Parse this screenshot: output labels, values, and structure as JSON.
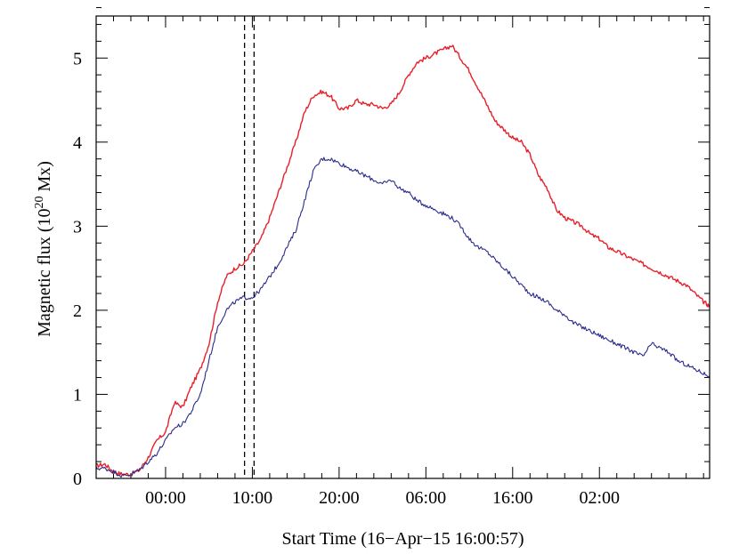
{
  "chart_data": {
    "type": "line",
    "xlabel": "Start Time (16−Apr−15 16:00:57)",
    "ylabel_main": "Magnetic flux (10",
    "ylabel_exp": "20",
    "ylabel_tail": " Mx)",
    "ylim": [
      0,
      5.5
    ],
    "xlim_hours": [
      0,
      70.7
    ],
    "x_ticks": [
      {
        "hour": 8,
        "label": "00:00"
      },
      {
        "hour": 18,
        "label": "10:00"
      },
      {
        "hour": 28,
        "label": "20:00"
      },
      {
        "hour": 38,
        "label": "06:00"
      },
      {
        "hour": 48,
        "label": "16:00"
      },
      {
        "hour": 58,
        "label": "02:00"
      }
    ],
    "y_ticks": [
      {
        "value": 0,
        "label": "0"
      },
      {
        "value": 1,
        "label": "1"
      },
      {
        "value": 2,
        "label": "2"
      },
      {
        "value": 3,
        "label": "3"
      },
      {
        "value": 4,
        "label": "4"
      },
      {
        "value": 5,
        "label": "5"
      }
    ],
    "vlines_hours": [
      17.1,
      18.2
    ],
    "series": [
      {
        "color": "#e8202a",
        "x": [
          0,
          1,
          2,
          3,
          4,
          5,
          6,
          7,
          8,
          9,
          10,
          11,
          12,
          13,
          14,
          15,
          16,
          17,
          18,
          19,
          20,
          21,
          22,
          23,
          24,
          25,
          26,
          27,
          28,
          29,
          30,
          31,
          32,
          33,
          34,
          35,
          36,
          37,
          38,
          39,
          40,
          41,
          42,
          43,
          44,
          45,
          46,
          47,
          48,
          49,
          50,
          51,
          52,
          53,
          54,
          55,
          56,
          57,
          58,
          59,
          60,
          61,
          62,
          63,
          64,
          65,
          66,
          67,
          68,
          69,
          70,
          70.7
        ],
        "values": [
          0.15,
          0.17,
          0.08,
          0.05,
          0.05,
          0.1,
          0.25,
          0.45,
          0.55,
          0.9,
          0.85,
          1.1,
          1.3,
          1.6,
          2.1,
          2.4,
          2.5,
          2.55,
          2.7,
          2.85,
          3.1,
          3.4,
          3.7,
          4.0,
          4.35,
          4.55,
          4.6,
          4.55,
          4.4,
          4.4,
          4.5,
          4.45,
          4.45,
          4.4,
          4.45,
          4.6,
          4.8,
          4.95,
          5.0,
          5.05,
          5.1,
          5.15,
          5.0,
          4.85,
          4.65,
          4.45,
          4.25,
          4.15,
          4.05,
          4.0,
          3.85,
          3.6,
          3.45,
          3.2,
          3.1,
          3.05,
          3.0,
          2.9,
          2.85,
          2.75,
          2.7,
          2.65,
          2.6,
          2.55,
          2.5,
          2.45,
          2.4,
          2.35,
          2.3,
          2.2,
          2.1,
          2.05
        ]
      },
      {
        "color": "#2a2a8c",
        "x": [
          0,
          1,
          2,
          3,
          4,
          5,
          6,
          7,
          8,
          9,
          10,
          11,
          12,
          13,
          14,
          15,
          16,
          17,
          18,
          19,
          20,
          21,
          22,
          23,
          24,
          25,
          26,
          27,
          28,
          29,
          30,
          31,
          32,
          33,
          34,
          35,
          36,
          37,
          38,
          39,
          40,
          41,
          42,
          43,
          44,
          45,
          46,
          47,
          48,
          49,
          50,
          51,
          52,
          53,
          54,
          55,
          56,
          57,
          58,
          59,
          60,
          61,
          62,
          63,
          64,
          65,
          66,
          67,
          68,
          69,
          70,
          70.7
        ],
        "values": [
          0.12,
          0.12,
          0.08,
          0.03,
          0.05,
          0.1,
          0.2,
          0.3,
          0.45,
          0.6,
          0.65,
          0.8,
          1.0,
          1.4,
          1.8,
          2.0,
          2.1,
          2.15,
          2.15,
          2.25,
          2.4,
          2.55,
          2.75,
          2.95,
          3.3,
          3.65,
          3.8,
          3.8,
          3.75,
          3.7,
          3.65,
          3.6,
          3.55,
          3.5,
          3.55,
          3.45,
          3.4,
          3.3,
          3.25,
          3.2,
          3.15,
          3.1,
          3.0,
          2.85,
          2.75,
          2.7,
          2.6,
          2.5,
          2.4,
          2.3,
          2.2,
          2.15,
          2.1,
          2.0,
          1.95,
          1.85,
          1.8,
          1.75,
          1.7,
          1.65,
          1.6,
          1.55,
          1.5,
          1.45,
          1.6,
          1.55,
          1.5,
          1.4,
          1.35,
          1.3,
          1.25,
          1.22
        ]
      }
    ]
  }
}
